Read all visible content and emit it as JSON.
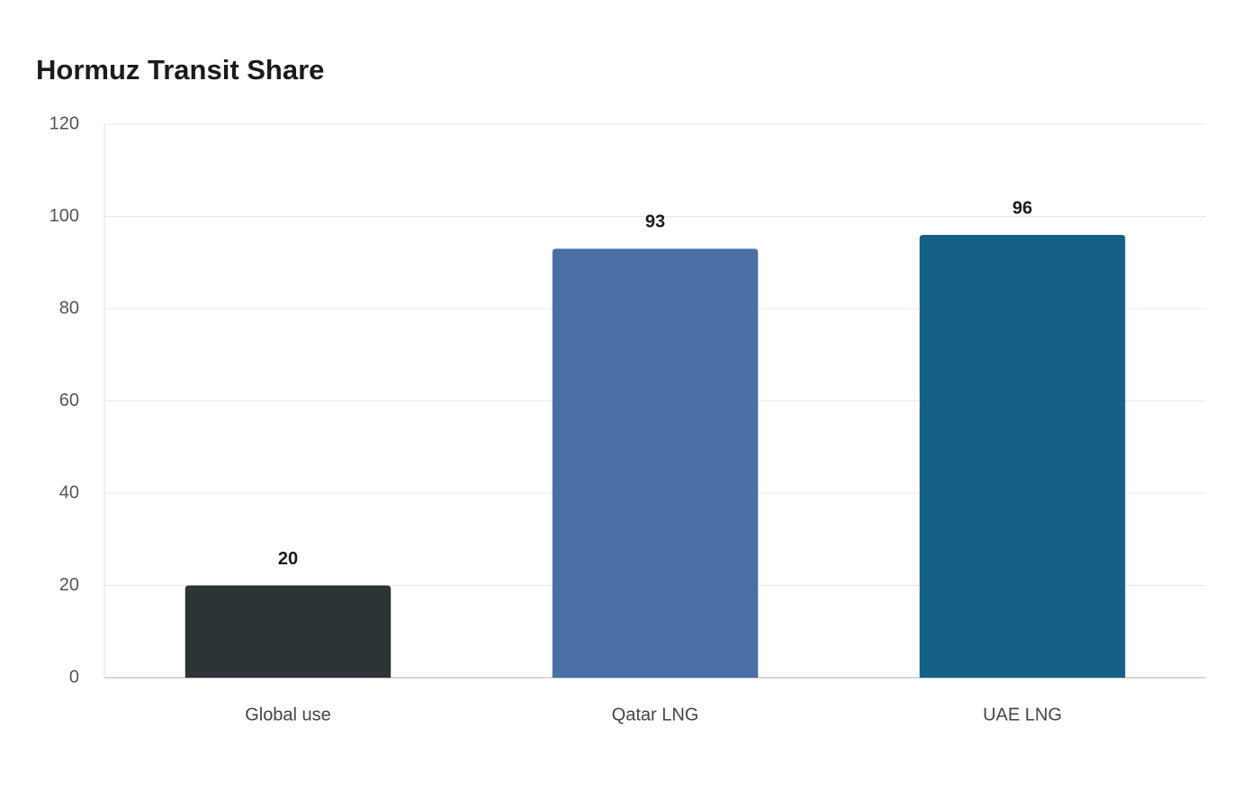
{
  "chart_data": {
    "type": "bar",
    "title": "Hormuz Transit Share",
    "categories": [
      "Global use",
      "Qatar LNG",
      "UAE LNG"
    ],
    "values": [
      20,
      93,
      96
    ],
    "colors": [
      "#2d3436",
      "#4a6fa5",
      "#166088"
    ],
    "ylim": [
      0,
      120
    ],
    "yticks": [
      0,
      20,
      40,
      60,
      80,
      100,
      120
    ],
    "grid": true
  }
}
